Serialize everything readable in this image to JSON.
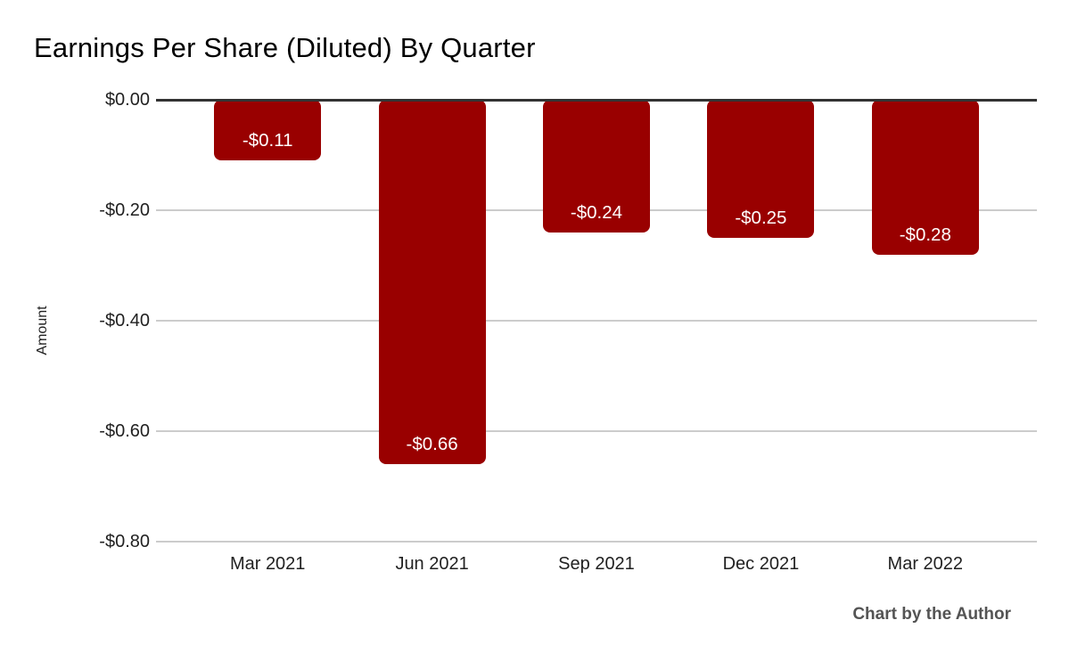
{
  "credit": "Chart by the Author",
  "chart_data": {
    "type": "bar",
    "title": "Earnings Per Share (Diluted) By Quarter",
    "categories": [
      "Mar 2021",
      "Jun 2021",
      "Sep 2021",
      "Dec 2021",
      "Mar 2022"
    ],
    "values": [
      -0.11,
      -0.66,
      -0.24,
      -0.25,
      -0.28
    ],
    "value_labels": [
      "-$0.11",
      "-$0.66",
      "-$0.24",
      "-$0.25",
      "-$0.28"
    ],
    "xlabel": "",
    "ylabel": "Amount",
    "ylim": [
      -0.8,
      0
    ],
    "y_tick_values": [
      0,
      -0.2,
      -0.4,
      -0.6,
      -0.8
    ],
    "y_tick_labels": [
      "$0.00",
      "-$0.20",
      "-$0.40",
      "-$0.60",
      "-$0.80"
    ],
    "grid": true,
    "legend_position": "none",
    "bar_color": "#990000",
    "label_color": "#ffffff",
    "zero_line_color": "#333333",
    "gridline_color": "#cccccc"
  }
}
